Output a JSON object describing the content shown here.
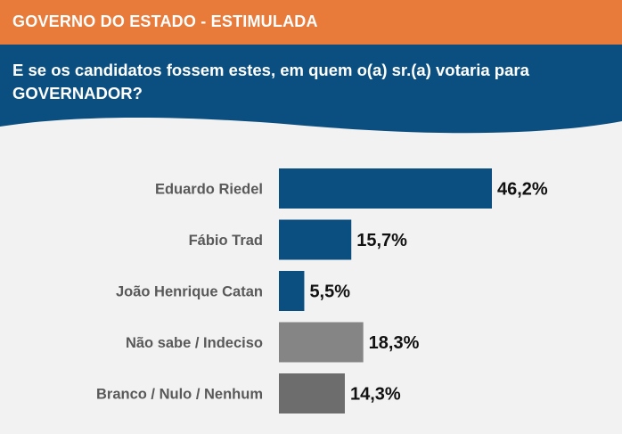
{
  "header": {
    "title": "GOVERNO DO ESTADO - ESTIMULADA",
    "question": "E se os candidatos fossem estes, em quem o(a) sr.(a) votaria para GOVERNADOR?"
  },
  "colors": {
    "header_orange": "#e87a3a",
    "question_blue": "#0b4f80",
    "candidate_bar": "#0b4f80",
    "nao_sabe_bar": "#858585",
    "branco_bar": "#6d6d6d"
  },
  "chart_data": {
    "type": "bar",
    "orientation": "horizontal",
    "categories": [
      "Eduardo Riedel",
      "Fábio Trad",
      "João Henrique Catan",
      "Não sabe / Indeciso",
      "Branco / Nulo / Nenhum"
    ],
    "values": [
      46.2,
      15.7,
      5.5,
      18.3,
      14.3
    ],
    "value_labels": [
      "46,2%",
      "15,7%",
      "5,5%",
      "18,3%",
      "14,3%"
    ],
    "bar_colors": [
      "#0b4f80",
      "#0b4f80",
      "#0b4f80",
      "#858585",
      "#6d6d6d"
    ],
    "title": "",
    "xlabel": "",
    "ylabel": "",
    "xlim": [
      0,
      46.2
    ],
    "grid": false,
    "legend": "none"
  }
}
